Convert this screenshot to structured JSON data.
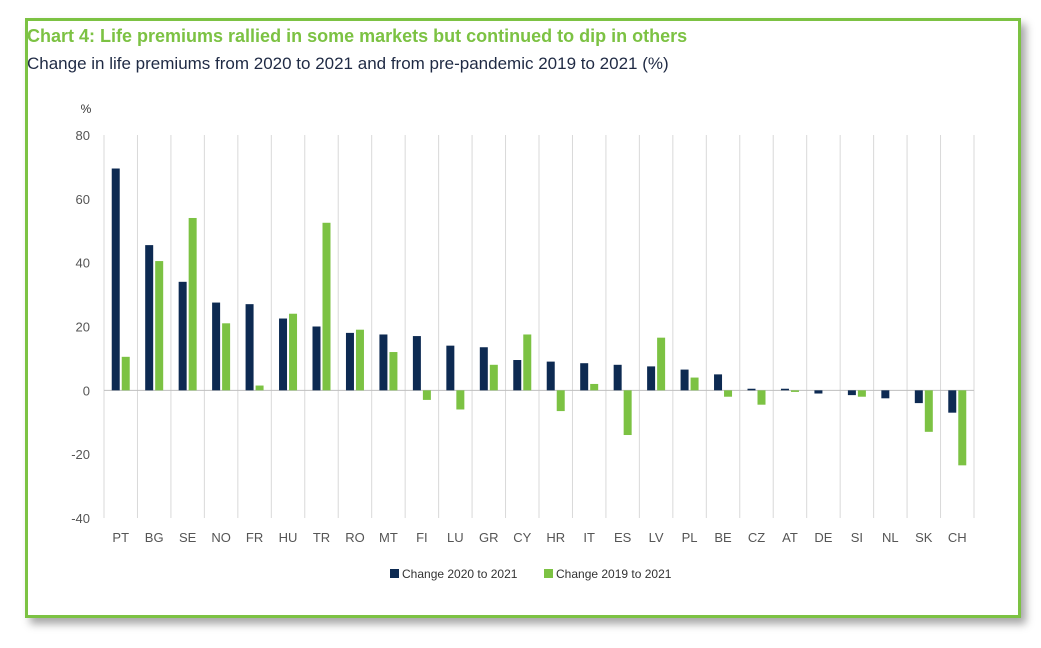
{
  "chart_data": {
    "type": "bar",
    "title": "Chart 4: Life premiums rallied in some markets but continued to dip in others",
    "subtitle": "Change in life premiums from 2020 to 2021 and from pre-pandemic 2019 to 2021 (%)",
    "ylabel": "%",
    "xlabel": "",
    "ylim": [
      -40,
      80
    ],
    "yticks": [
      80,
      60,
      40,
      20,
      0,
      -20,
      -40
    ],
    "grid": "vertical-category-separators",
    "legend_position": "bottom-center",
    "categories": [
      "PT",
      "BG",
      "SE",
      "NO",
      "FR",
      "HU",
      "TR",
      "RO",
      "MT",
      "FI",
      "LU",
      "GR",
      "CY",
      "HR",
      "IT",
      "ES",
      "LV",
      "PL",
      "BE",
      "CZ",
      "AT",
      "DE",
      "SI",
      "NL",
      "SK",
      "CH"
    ],
    "series": [
      {
        "name": "Change 2020 to 2021",
        "color": "#0d2a52",
        "values": [
          69.5,
          45.5,
          34,
          27.5,
          27,
          22.5,
          20,
          18,
          17.5,
          17,
          14,
          13.5,
          9.5,
          9,
          8.5,
          8,
          7.5,
          6.5,
          5,
          0.5,
          0.5,
          -1,
          -1.5,
          -2.5,
          -4,
          -7
        ]
      },
      {
        "name": "Change 2019 to 2021",
        "color": "#7cc243",
        "values": [
          10.5,
          40.5,
          54,
          21,
          1.5,
          24,
          52.5,
          19,
          12,
          -3,
          -6,
          8,
          17.5,
          -6.5,
          2,
          -14,
          16.5,
          4,
          -2,
          -4.5,
          -0.5,
          0,
          -2,
          0,
          -13,
          -23.5
        ]
      }
    ]
  }
}
